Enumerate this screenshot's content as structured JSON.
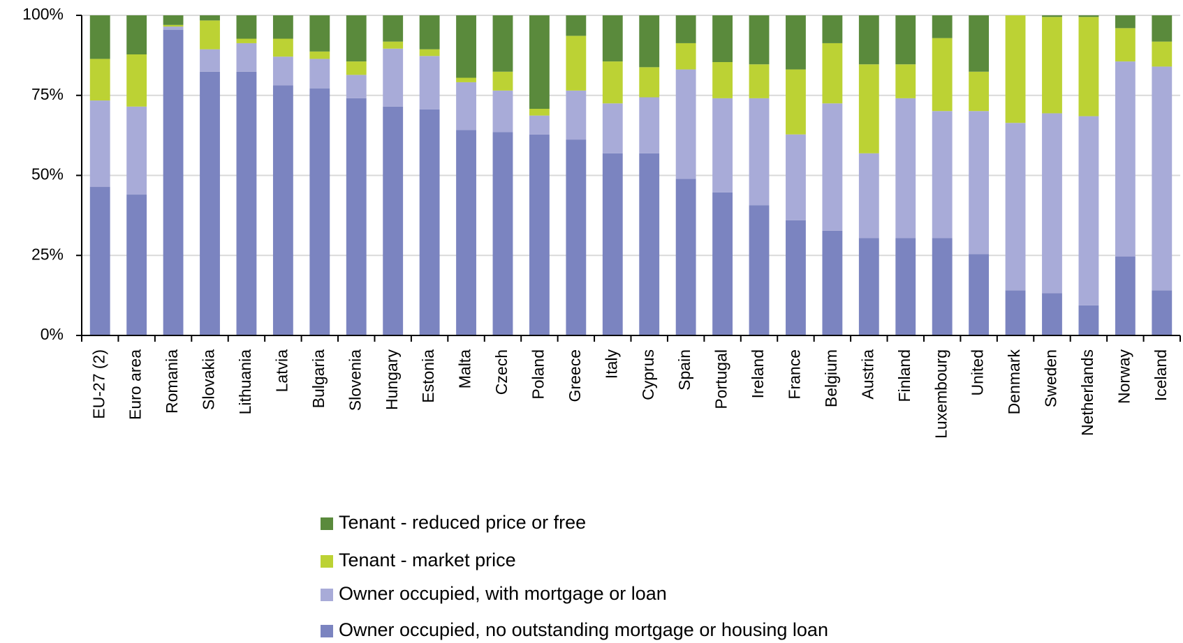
{
  "chart_data": {
    "type": "stacked_bar",
    "categories": [
      "EU-27 (2)",
      "Euro area",
      "Romania",
      "Slovakia",
      "Lithuania",
      "Latvia",
      "Bulgaria",
      "Slovenia",
      "Hungary",
      "Estonia",
      "Malta",
      "Czech",
      "Poland",
      "Greece",
      "Italy",
      "Cyprus",
      "Spain",
      "Portugal",
      "Ireland",
      "France",
      "Belgium",
      "Austria",
      "Finland",
      "Luxembourg",
      "United",
      "Denmark",
      "Sweden",
      "Netherlands",
      "Norway",
      "Iceland"
    ],
    "series": [
      {
        "name": "Owner occupied, no outstanding mortgage or housing loan",
        "color": "#7b84c0",
        "values": [
          46.4,
          44.0,
          95.5,
          82.4,
          82.4,
          78.1,
          77.2,
          74.1,
          71.5,
          70.6,
          64.2,
          63.5,
          62.8,
          61.2,
          56.9,
          56.9,
          48.9,
          44.7,
          40.7,
          36.0,
          32.7,
          30.4,
          30.4,
          30.4,
          25.4,
          14.1,
          13.2,
          9.4,
          24.7,
          14.1
        ]
      },
      {
        "name": "Owner occupied, with mortgage or loan",
        "color": "#a8abd8",
        "values": [
          27.0,
          27.5,
          1.0,
          7.0,
          8.9,
          9.0,
          9.2,
          7.3,
          18.1,
          16.7,
          14.9,
          13.0,
          5.9,
          15.3,
          15.6,
          17.5,
          34.2,
          29.4,
          33.4,
          26.8,
          39.8,
          26.5,
          43.7,
          39.7,
          44.7,
          52.3,
          56.2,
          59.1,
          60.9,
          69.9
        ]
      },
      {
        "name": "Tenant - market price",
        "color": "#bcd234",
        "values": [
          13.0,
          16.3,
          0.5,
          9.0,
          1.4,
          5.6,
          2.3,
          4.2,
          2.2,
          2.1,
          1.4,
          5.9,
          2.1,
          17.1,
          13.1,
          9.4,
          8.2,
          11.3,
          10.6,
          20.3,
          18.8,
          27.8,
          10.6,
          22.8,
          12.3,
          33.6,
          30.1,
          31.0,
          10.4,
          7.8
        ]
      },
      {
        "name": "Tenant - reduced price or free",
        "color": "#5a8a3c",
        "values": [
          13.6,
          12.2,
          3.0,
          1.6,
          7.3,
          7.3,
          11.3,
          14.4,
          8.2,
          10.6,
          19.5,
          17.6,
          29.2,
          6.4,
          14.4,
          16.2,
          8.7,
          14.6,
          15.3,
          16.9,
          8.7,
          15.3,
          15.3,
          7.1,
          17.6,
          0,
          0.5,
          0.5,
          4.0,
          8.2
        ]
      }
    ],
    "ylim": [
      0,
      100
    ],
    "yticks": [
      {
        "value": 0,
        "label": "0%"
      },
      {
        "value": 25,
        "label": "25%"
      },
      {
        "value": 50,
        "label": "50%"
      },
      {
        "value": 75,
        "label": "75%"
      },
      {
        "value": 100,
        "label": "100%"
      }
    ],
    "grid": true
  }
}
